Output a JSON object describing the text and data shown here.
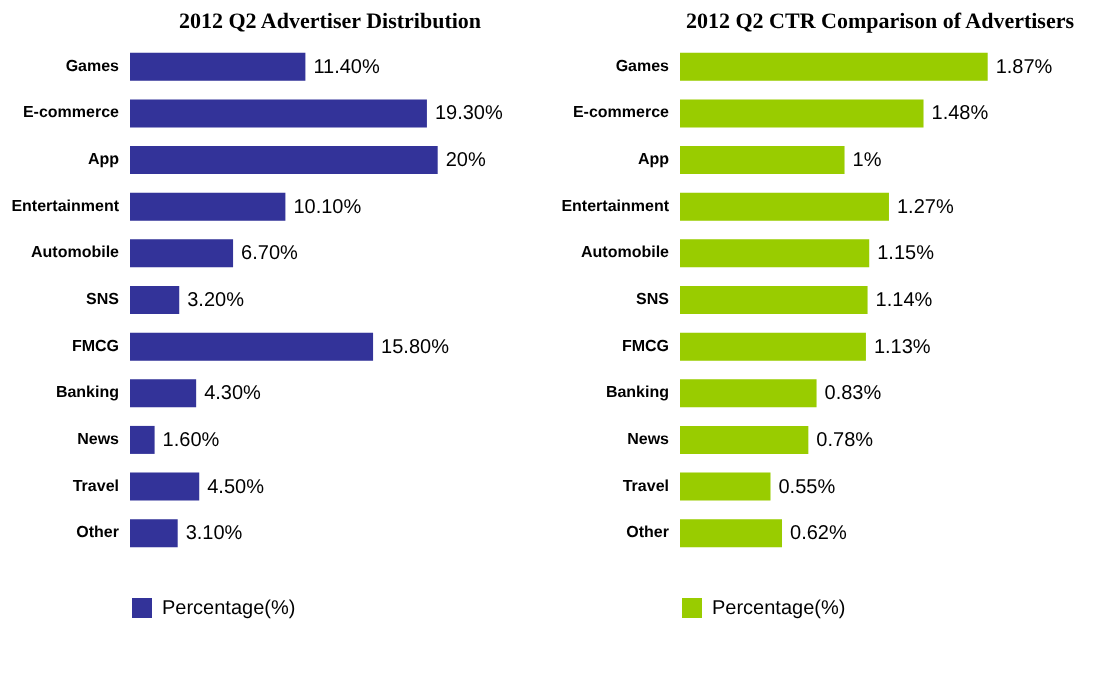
{
  "chart_data": [
    {
      "type": "bar",
      "orientation": "horizontal",
      "title": "2012 Q2 Advertiser Distribution",
      "categories": [
        "Games",
        "E-commerce",
        "App",
        "Entertainment",
        "Automobile",
        "SNS",
        "FMCG",
        "Banking",
        "News",
        "Travel",
        "Other"
      ],
      "series": [
        {
          "name": "Percentage(%)",
          "color": "#333399",
          "values": [
            11.4,
            19.3,
            20,
            10.1,
            6.7,
            3.2,
            15.8,
            4.3,
            1.6,
            4.5,
            3.1
          ],
          "value_labels": [
            "11.40%",
            "19.30%",
            "20%",
            "10.10%",
            "6.70%",
            "3.20%",
            "15.80%",
            "4.30%",
            "1.60%",
            "4.50%",
            "3.10%"
          ]
        }
      ],
      "legend": "bottom"
    },
    {
      "type": "bar",
      "orientation": "horizontal",
      "title": "2012 Q2  CTR Comparison of  Advertisers",
      "categories": [
        "Games",
        "E-commerce",
        "App",
        "Entertainment",
        "Automobile",
        "SNS",
        "FMCG",
        "Banking",
        "News",
        "Travel",
        "Other"
      ],
      "series": [
        {
          "name": "Percentage(%)",
          "color": "#99cc00",
          "values": [
            1.87,
            1.48,
            1,
            1.27,
            1.15,
            1.14,
            1.13,
            0.83,
            0.78,
            0.55,
            0.62
          ],
          "value_labels": [
            "1.87%",
            "1.48%",
            "1%",
            "1.27%",
            "1.15%",
            "1.14%",
            "1.13%",
            "0.83%",
            "0.78%",
            "0.55%",
            "0.62%"
          ]
        }
      ],
      "legend": "bottom"
    }
  ]
}
